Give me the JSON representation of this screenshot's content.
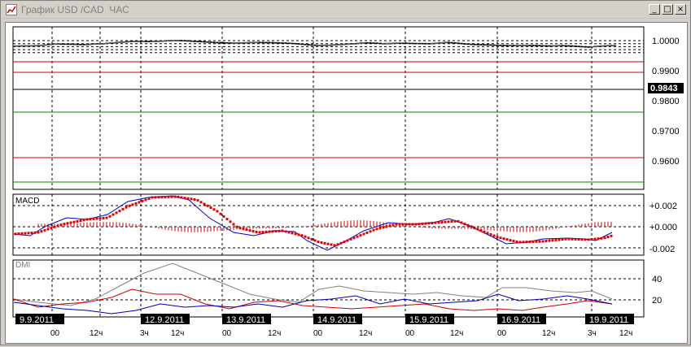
{
  "window": {
    "title": "График USD /CAD  ЧАС",
    "buttons": {
      "minimize": "_",
      "maximize": "□",
      "close": "×"
    }
  },
  "price_axis": {
    "labels": [
      "1.0000",
      "0.9900",
      "0.9843",
      "0.9800",
      "0.9700",
      "0.9600"
    ]
  },
  "macd_axis": {
    "title": "MACD",
    "labels": [
      "+0.002",
      "+0.000",
      "-0.002"
    ]
  },
  "dmi_axis": {
    "title": "DMI",
    "labels": [
      "40",
      "20"
    ]
  },
  "date_labels": [
    "9.9.2011",
    "12.9.2011",
    "13.9.2011",
    "14.9.2011",
    "15.9.2011",
    "16.9.2011",
    "19.9.2011"
  ],
  "hour_labels": [
    "00",
    "12ч",
    "3ч",
    "12ч",
    "00",
    "12ч",
    "00",
    "12ч",
    "00",
    "12ч",
    "00",
    "12ч",
    "3ч",
    "12ч"
  ],
  "colors": {
    "grid": "#000000",
    "resistance": "#cc0000",
    "support": "#008800",
    "macd_line": "#0000cc",
    "signal_dots": "#dd0000",
    "histogram": "#cc0000",
    "dmi_adx": "#808080",
    "dmi_plus": "#0000aa",
    "dmi_minus": "#cc0000",
    "candle": "#000000",
    "last_price_bg": "#000000"
  }
}
